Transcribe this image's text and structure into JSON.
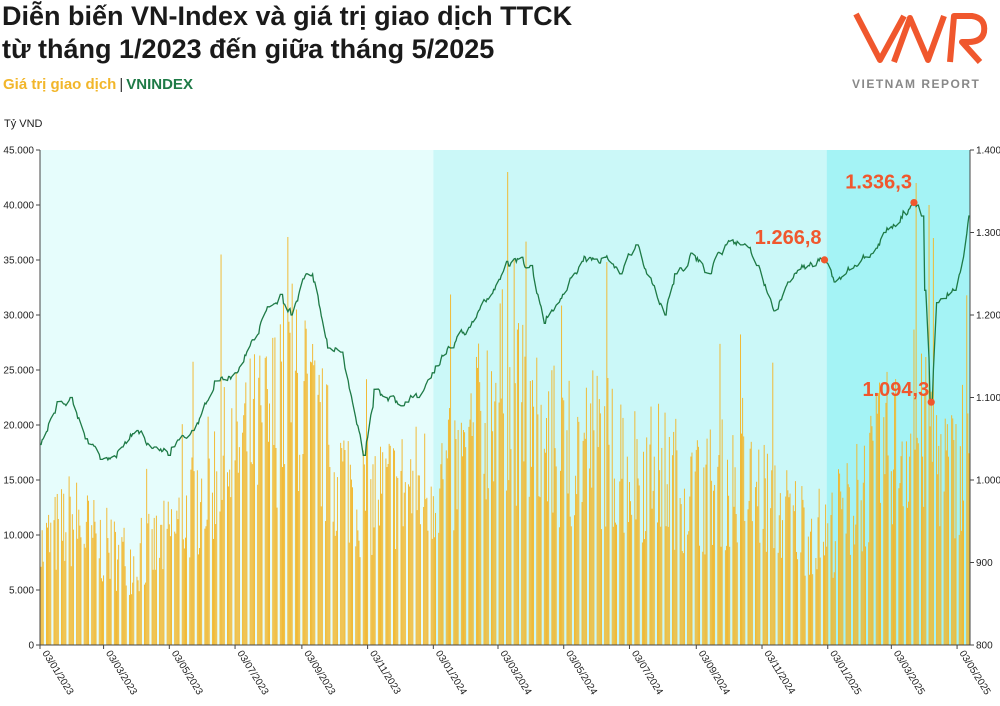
{
  "title_line1": "Diễn biến VN-Index và giá trị giao dịch TTCK",
  "title_line2": "từ tháng 1/2023 đến giữa tháng 5/2025",
  "legend_volume": "Giá trị giao dịch",
  "legend_sep": "|",
  "legend_index": "VNINDEX",
  "logo_text": "VIETNAM REPORT",
  "colors": {
    "volume": "#f2b62a",
    "index": "#1e7a46",
    "annotation": "#f0572d",
    "band_light": "#e6fdfc",
    "band_mid": "#cbf8f8",
    "band_strong": "#a4f3f5"
  },
  "chart_data": {
    "type": "bar+line",
    "ylabel": "Tỷ VND",
    "x_ticks": [
      "03/01/2023",
      "03/03/2023",
      "03/05/2023",
      "03/07/2023",
      "03/09/2023",
      "03/11/2023",
      "03/01/2024",
      "03/03/2024",
      "03/05/2024",
      "03/07/2024",
      "03/09/2024",
      "03/11/2024",
      "03/01/2025",
      "03/03/2025",
      "03/05/2025"
    ],
    "x_range": [
      "2023-01-03",
      "2025-05-15"
    ],
    "y_left": {
      "min": 0,
      "max": 45000,
      "ticks": [
        "0",
        "5.000",
        "10.000",
        "15.000",
        "20.000",
        "25.000",
        "30.000",
        "35.000",
        "40.000",
        "45.000"
      ]
    },
    "y_right": {
      "min": 800,
      "max": 1400,
      "ticks": [
        "800",
        "900",
        "1.000",
        "1.100",
        "1.200",
        "1.300",
        "1.400"
      ]
    },
    "shaded_periods": [
      {
        "start": "2023-01-03",
        "end": "2024-01-03",
        "shade": "light"
      },
      {
        "start": "2024-01-03",
        "end": "2025-01-02",
        "shade": "mid"
      },
      {
        "start": "2025-01-02",
        "end": "2025-05-15",
        "shade": "strong"
      }
    ],
    "vnindex_keypoints": [
      [
        "2023-01-03",
        1043
      ],
      [
        "2023-01-20",
        1095
      ],
      [
        "2023-02-01",
        1100
      ],
      [
        "2023-02-15",
        1050
      ],
      [
        "2023-03-01",
        1025
      ],
      [
        "2023-03-20",
        1040
      ],
      [
        "2023-04-03",
        1060
      ],
      [
        "2023-04-20",
        1040
      ],
      [
        "2023-05-03",
        1030
      ],
      [
        "2023-05-25",
        1060
      ],
      [
        "2023-06-15",
        1120
      ],
      [
        "2023-07-03",
        1130
      ],
      [
        "2023-07-20",
        1170
      ],
      [
        "2023-08-03",
        1210
      ],
      [
        "2023-08-15",
        1225
      ],
      [
        "2023-08-25",
        1200
      ],
      [
        "2023-09-08",
        1250
      ],
      [
        "2023-09-15",
        1240
      ],
      [
        "2023-09-28",
        1160
      ],
      [
        "2023-10-10",
        1155
      ],
      [
        "2023-10-31",
        1030
      ],
      [
        "2023-11-10",
        1110
      ],
      [
        "2023-11-20",
        1100
      ],
      [
        "2023-12-05",
        1090
      ],
      [
        "2023-12-20",
        1100
      ],
      [
        "2024-01-03",
        1130
      ],
      [
        "2024-01-20",
        1160
      ],
      [
        "2024-02-05",
        1185
      ],
      [
        "2024-02-25",
        1225
      ],
      [
        "2024-03-11",
        1265
      ],
      [
        "2024-03-25",
        1270
      ],
      [
        "2024-04-03",
        1260
      ],
      [
        "2024-04-15",
        1190
      ],
      [
        "2024-05-03",
        1225
      ],
      [
        "2024-05-20",
        1265
      ],
      [
        "2024-06-10",
        1270
      ],
      [
        "2024-06-25",
        1250
      ],
      [
        "2024-07-10",
        1285
      ],
      [
        "2024-07-20",
        1250
      ],
      [
        "2024-08-05",
        1200
      ],
      [
        "2024-08-15",
        1250
      ],
      [
        "2024-08-30",
        1275
      ],
      [
        "2024-09-15",
        1250
      ],
      [
        "2024-09-30",
        1285
      ],
      [
        "2024-10-15",
        1285
      ],
      [
        "2024-10-30",
        1260
      ],
      [
        "2024-11-15",
        1205
      ],
      [
        "2024-11-28",
        1240
      ],
      [
        "2024-12-15",
        1260
      ],
      [
        "2024-12-31",
        1266.8
      ],
      [
        "2025-01-10",
        1240
      ],
      [
        "2025-01-25",
        1255
      ],
      [
        "2025-02-10",
        1270
      ],
      [
        "2025-02-25",
        1300
      ],
      [
        "2025-03-15",
        1326
      ],
      [
        "2025-03-24",
        1336.3
      ],
      [
        "2025-04-01",
        1320
      ],
      [
        "2025-04-04",
        1230
      ],
      [
        "2025-04-09",
        1094.3
      ],
      [
        "2025-04-15",
        1215
      ],
      [
        "2025-04-22",
        1220
      ],
      [
        "2025-05-01",
        1230
      ],
      [
        "2025-05-10",
        1270
      ],
      [
        "2025-05-15",
        1320
      ]
    ],
    "volume_keypoints": [
      [
        "2023-01-03",
        9000
      ],
      [
        "2023-02-01",
        12000
      ],
      [
        "2023-03-01",
        9500
      ],
      [
        "2023-04-01",
        8000
      ],
      [
        "2023-05-01",
        10000
      ],
      [
        "2023-06-01",
        14500
      ],
      [
        "2023-07-01",
        18500
      ],
      [
        "2023-08-01",
        21000
      ],
      [
        "2023-08-25",
        25000
      ],
      [
        "2023-09-10",
        22000
      ],
      [
        "2023-10-01",
        17000
      ],
      [
        "2023-11-01",
        14000
      ],
      [
        "2023-12-01",
        15000
      ],
      [
        "2024-01-03",
        15500
      ],
      [
        "2024-02-01",
        17000
      ],
      [
        "2024-03-01",
        25000
      ],
      [
        "2024-04-01",
        21000
      ],
      [
        "2024-05-01",
        17500
      ],
      [
        "2024-06-01",
        19500
      ],
      [
        "2024-07-01",
        17000
      ],
      [
        "2024-08-01",
        16500
      ],
      [
        "2024-09-01",
        14500
      ],
      [
        "2024-10-01",
        15500
      ],
      [
        "2024-11-01",
        14500
      ],
      [
        "2024-12-01",
        12000
      ],
      [
        "2025-01-03",
        10500
      ],
      [
        "2025-02-01",
        14000
      ],
      [
        "2025-03-01",
        19000
      ],
      [
        "2025-04-01",
        20000
      ],
      [
        "2025-05-01",
        16000
      ],
      [
        "2025-05-15",
        22000
      ]
    ],
    "volume_spikes": [
      [
        "2023-06-20",
        35500
      ],
      [
        "2023-08-29",
        30500
      ],
      [
        "2023-09-06",
        29500
      ],
      [
        "2024-03-12",
        43000
      ],
      [
        "2024-03-18",
        35000
      ],
      [
        "2025-03-26",
        42000
      ],
      [
        "2025-04-07",
        40000
      ],
      [
        "2025-04-11",
        37000
      ]
    ],
    "annotations": [
      {
        "label": "1.266,8",
        "date": "2024-12-31",
        "value": 1266.8
      },
      {
        "label": "1.336,3",
        "date": "2025-03-24",
        "value": 1336.3
      },
      {
        "label": "1.094,3",
        "date": "2025-04-09",
        "value": 1094.3
      }
    ]
  }
}
